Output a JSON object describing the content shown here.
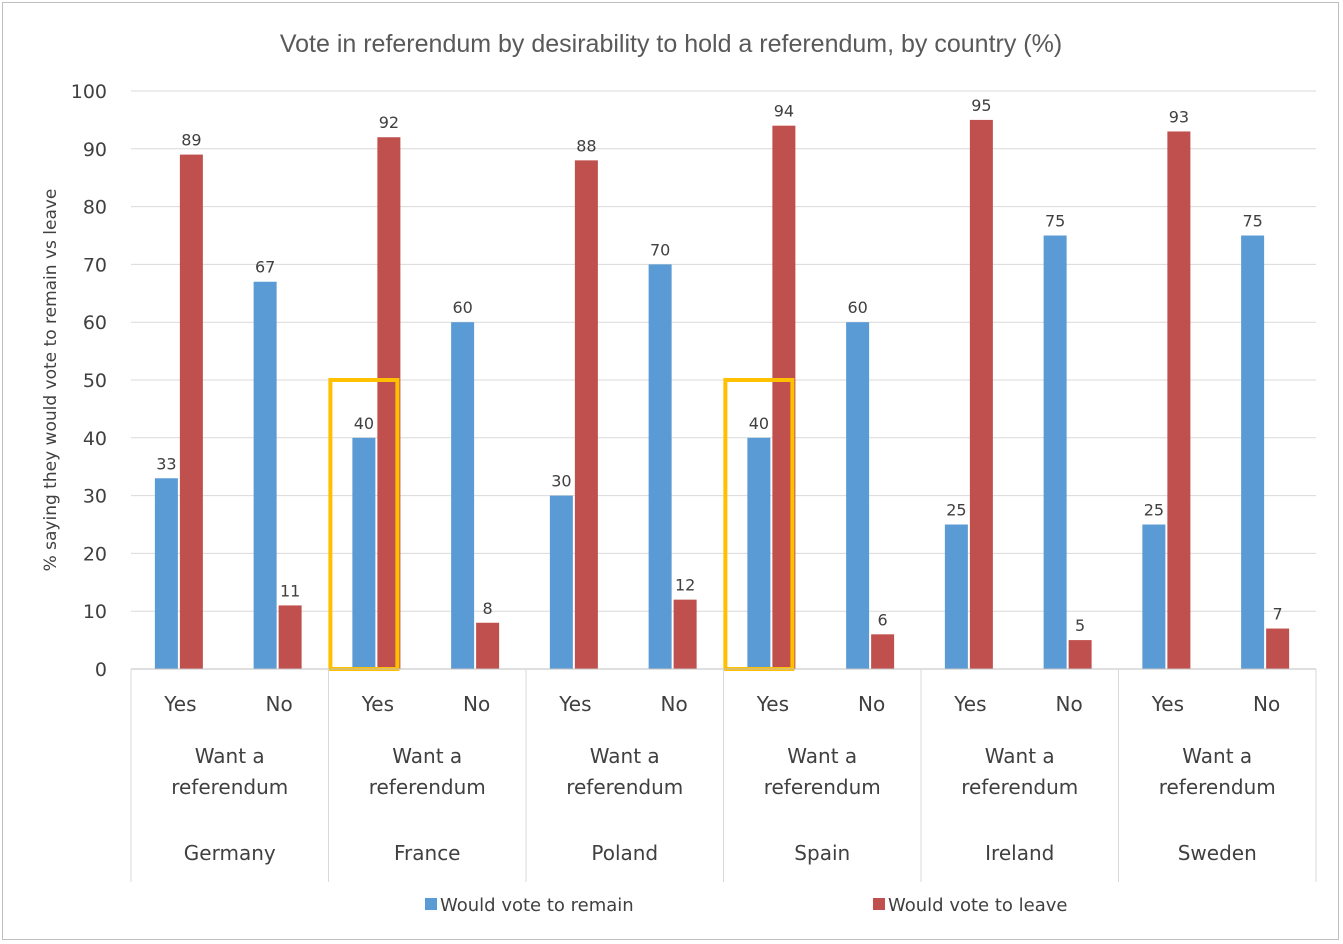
{
  "chart_data": {
    "type": "bar",
    "title": "Vote in referendum by desirability to hold a referendum, by country (%)",
    "ylabel": "% saying they would vote to remain vs leave",
    "ylim": [
      0,
      100
    ],
    "yticks": [
      0,
      10,
      20,
      30,
      40,
      50,
      60,
      70,
      80,
      90,
      100
    ],
    "grid": true,
    "legend_position": "bottom",
    "group_label": "Want a referendum",
    "countries": [
      "Germany",
      "France",
      "Poland",
      "Spain",
      "Ireland",
      "Sweden"
    ],
    "answers": [
      "Yes",
      "No"
    ],
    "series": [
      {
        "name": "Would vote to remain",
        "color": "#5b9bd5",
        "values": [
          33,
          67,
          40,
          60,
          30,
          70,
          40,
          60,
          25,
          75,
          25,
          75
        ]
      },
      {
        "name": "Would vote to leave",
        "color": "#c0504d",
        "values": [
          89,
          11,
          92,
          8,
          88,
          12,
          94,
          6,
          95,
          5,
          93,
          7
        ]
      }
    ],
    "highlights": [
      {
        "country": "France",
        "answer": "Yes",
        "series": "Would vote to remain",
        "color": "#ffc000"
      },
      {
        "country": "Spain",
        "answer": "Yes",
        "series": "Would vote to remain",
        "color": "#ffc000"
      }
    ]
  }
}
